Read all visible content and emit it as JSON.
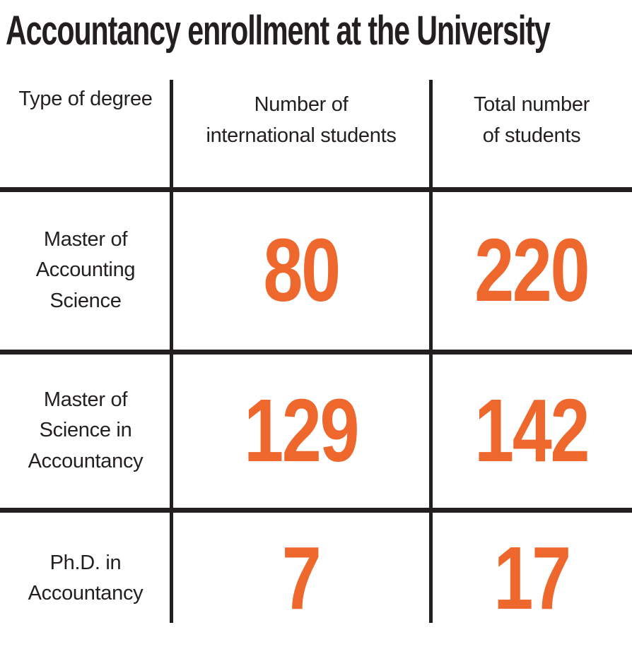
{
  "title": "Accountancy enrollment at the University",
  "colors": {
    "accent_orange": "#EE672C",
    "line_black": "#231F20",
    "text_black": "#231F20"
  },
  "table": {
    "columns": [
      {
        "label": "Type of degree"
      },
      {
        "label": "Number of\ninternational students"
      },
      {
        "label": "Total number\nof students"
      }
    ],
    "rows": [
      {
        "degree": "Master of\nAccounting\nScience",
        "international": "80",
        "total": "220"
      },
      {
        "degree": "Master of\nScience in\nAccountancy",
        "international": "129",
        "total": "142"
      },
      {
        "degree": "Ph.D. in\nAccountancy",
        "international": "7",
        "total": "17"
      }
    ]
  },
  "chart_data": {
    "type": "table",
    "title": "Accountancy enrollment at the University",
    "columns": [
      "Type of degree",
      "Number of international students",
      "Total number of students"
    ],
    "rows": [
      [
        "Master of Accounting Science",
        80,
        220
      ],
      [
        "Master of Science in Accountancy",
        129,
        142
      ],
      [
        "Ph.D. in Accountancy",
        7,
        17
      ]
    ]
  }
}
